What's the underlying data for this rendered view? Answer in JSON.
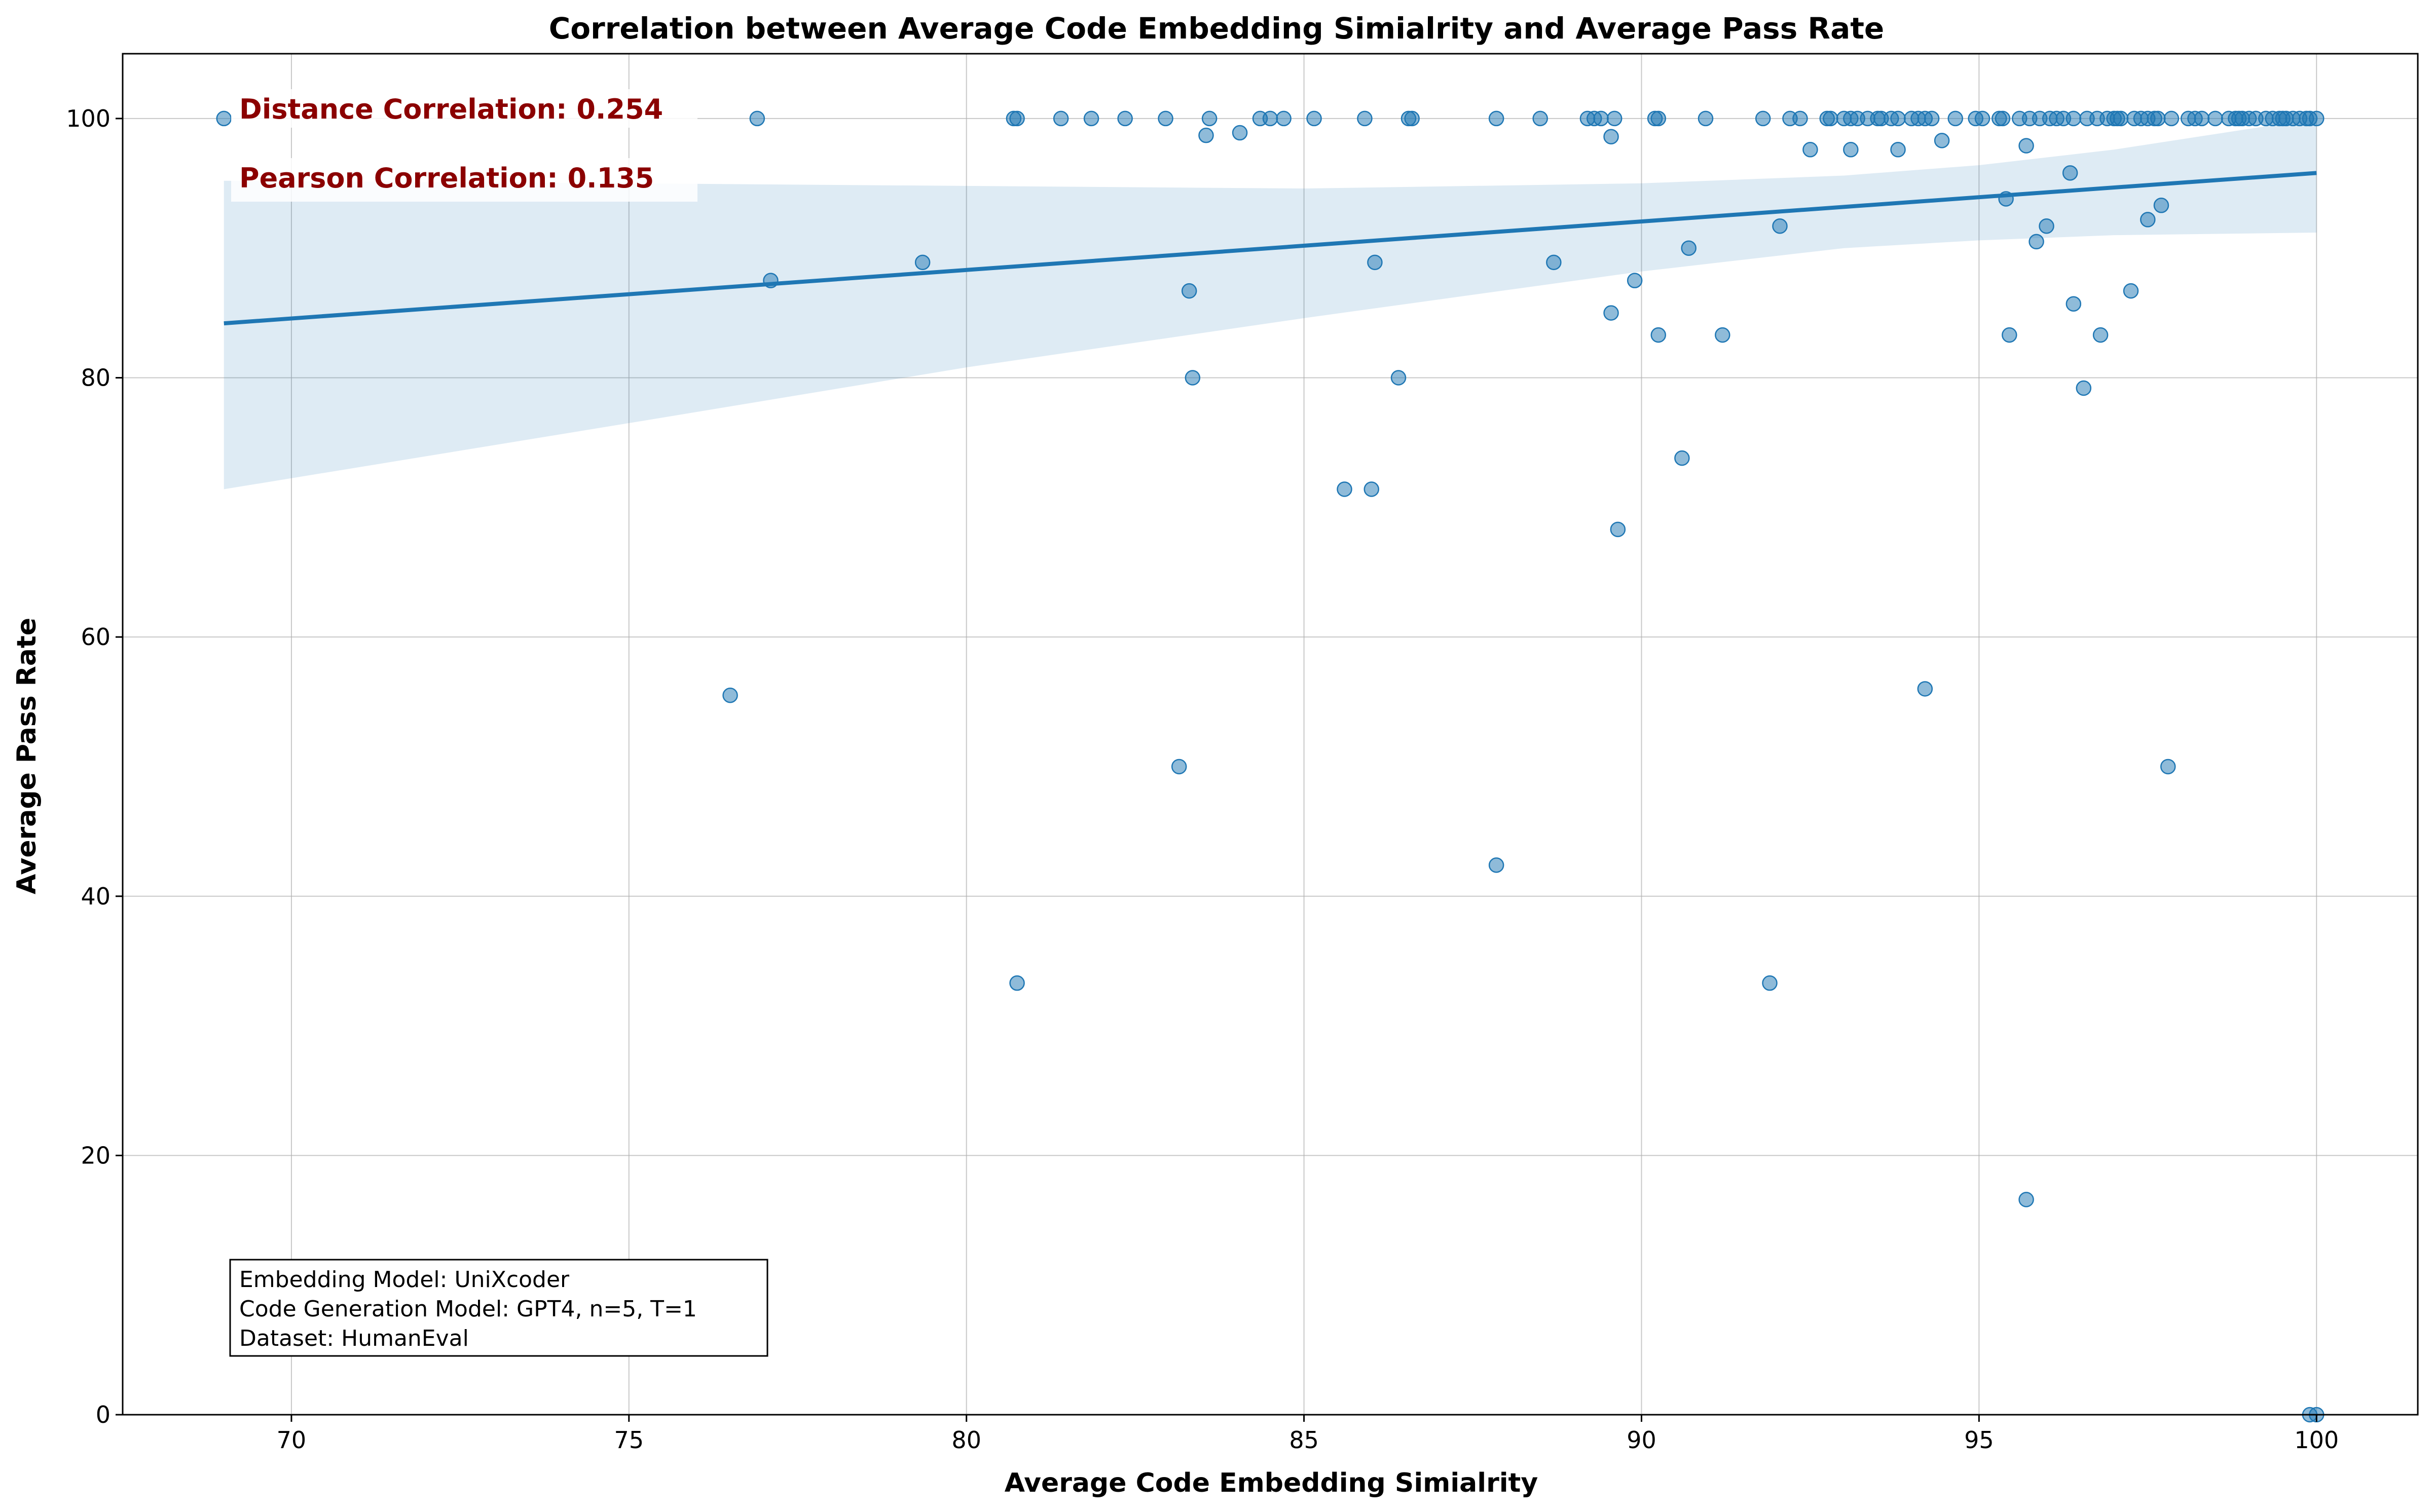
{
  "chart_data": {
    "type": "scatter",
    "title": "Correlation between Average Code Embedding Simialrity and Average Pass Rate",
    "xlabel": "Average Code Embedding Simialrity",
    "ylabel": "Average Pass Rate",
    "xlim": [
      67.5,
      101.5
    ],
    "ylim": [
      0,
      105
    ],
    "xticks": [
      70,
      75,
      80,
      85,
      90,
      95,
      100
    ],
    "yticks": [
      0,
      20,
      40,
      60,
      80,
      100
    ],
    "grid": true,
    "colors": {
      "points": "#1f77b4",
      "line": "#1f77b4",
      "band": "#1f77b4",
      "annotation": "#8b0000"
    },
    "annotations": {
      "distance": "Distance Correlation: 0.254",
      "pearson": "Pearson Correlation: 0.135",
      "info": [
        "Embedding Model: UniXcoder",
        "Code Generation Model: GPT4, n=5, T=1",
        "Dataset: HumanEval"
      ]
    },
    "regression": {
      "x": [
        69.0,
        100.0
      ],
      "y": [
        84.2,
        95.8
      ],
      "ci": [
        {
          "x": 69.0,
          "lo": 71.4,
          "hi": 95.2
        },
        {
          "x": 75.0,
          "lo": 76.5,
          "hi": 95.0
        },
        {
          "x": 80.0,
          "lo": 80.8,
          "hi": 94.8
        },
        {
          "x": 85.0,
          "lo": 84.6,
          "hi": 94.6
        },
        {
          "x": 90.0,
          "lo": 88.2,
          "hi": 95.0
        },
        {
          "x": 93.0,
          "lo": 90.0,
          "hi": 95.6
        },
        {
          "x": 95.0,
          "lo": 90.6,
          "hi": 96.4
        },
        {
          "x": 97.0,
          "lo": 91.0,
          "hi": 97.6
        },
        {
          "x": 100.0,
          "lo": 91.2,
          "hi": 100.0
        }
      ]
    },
    "points": [
      [
        69.0,
        100
      ],
      [
        76.9,
        100
      ],
      [
        80.7,
        100
      ],
      [
        80.75,
        100
      ],
      [
        81.4,
        100
      ],
      [
        81.85,
        100
      ],
      [
        82.35,
        100
      ],
      [
        82.95,
        100
      ],
      [
        83.6,
        100
      ],
      [
        84.35,
        100
      ],
      [
        84.5,
        100
      ],
      [
        84.7,
        100
      ],
      [
        85.15,
        100
      ],
      [
        85.9,
        100
      ],
      [
        86.55,
        100
      ],
      [
        86.6,
        100
      ],
      [
        87.85,
        100
      ],
      [
        88.5,
        100
      ],
      [
        89.2,
        100
      ],
      [
        89.3,
        100
      ],
      [
        89.4,
        100
      ],
      [
        89.6,
        100
      ],
      [
        90.2,
        100
      ],
      [
        90.25,
        100
      ],
      [
        90.95,
        100
      ],
      [
        91.8,
        100
      ],
      [
        92.2,
        100
      ],
      [
        92.35,
        100
      ],
      [
        92.75,
        100
      ],
      [
        92.8,
        100
      ],
      [
        93.0,
        100
      ],
      [
        93.1,
        100
      ],
      [
        93.2,
        100
      ],
      [
        93.35,
        100
      ],
      [
        93.5,
        100
      ],
      [
        93.55,
        100
      ],
      [
        93.7,
        100
      ],
      [
        93.8,
        100
      ],
      [
        94.0,
        100
      ],
      [
        94.1,
        100
      ],
      [
        94.2,
        100
      ],
      [
        94.3,
        100
      ],
      [
        94.65,
        100
      ],
      [
        94.95,
        100
      ],
      [
        95.05,
        100
      ],
      [
        95.3,
        100
      ],
      [
        95.35,
        100
      ],
      [
        95.6,
        100
      ],
      [
        95.75,
        100
      ],
      [
        95.9,
        100
      ],
      [
        96.05,
        100
      ],
      [
        96.15,
        100
      ],
      [
        96.25,
        100
      ],
      [
        96.4,
        100
      ],
      [
        96.6,
        100
      ],
      [
        96.75,
        100
      ],
      [
        96.9,
        100
      ],
      [
        97.0,
        100
      ],
      [
        97.05,
        100
      ],
      [
        97.1,
        100
      ],
      [
        97.3,
        100
      ],
      [
        97.4,
        100
      ],
      [
        97.5,
        100
      ],
      [
        97.6,
        100
      ],
      [
        97.65,
        100
      ],
      [
        97.85,
        100
      ],
      [
        98.1,
        100
      ],
      [
        98.2,
        100
      ],
      [
        98.3,
        100
      ],
      [
        98.5,
        100
      ],
      [
        98.7,
        100
      ],
      [
        98.8,
        100
      ],
      [
        98.85,
        100
      ],
      [
        98.9,
        100
      ],
      [
        99.0,
        100
      ],
      [
        99.1,
        100
      ],
      [
        99.25,
        100
      ],
      [
        99.35,
        100
      ],
      [
        99.45,
        100
      ],
      [
        99.5,
        100
      ],
      [
        99.55,
        100
      ],
      [
        99.65,
        100
      ],
      [
        99.75,
        100
      ],
      [
        99.85,
        100
      ],
      [
        99.9,
        100
      ],
      [
        100.0,
        100
      ],
      [
        83.55,
        98.7
      ],
      [
        84.05,
        98.9
      ],
      [
        89.55,
        98.6
      ],
      [
        92.5,
        97.6
      ],
      [
        93.1,
        97.6
      ],
      [
        93.8,
        97.6
      ],
      [
        94.45,
        98.3
      ],
      [
        95.7,
        97.9
      ],
      [
        96.35,
        95.8
      ],
      [
        95.4,
        93.8
      ],
      [
        97.7,
        93.3
      ],
      [
        97.5,
        92.2
      ],
      [
        92.05,
        91.7
      ],
      [
        96.0,
        91.7
      ],
      [
        95.85,
        90.5
      ],
      [
        90.7,
        90.0
      ],
      [
        79.35,
        88.9
      ],
      [
        77.1,
        87.5
      ],
      [
        86.05,
        88.9
      ],
      [
        88.7,
        88.9
      ],
      [
        89.9,
        87.5
      ],
      [
        83.3,
        86.7
      ],
      [
        96.4,
        85.7
      ],
      [
        97.25,
        86.7
      ],
      [
        89.55,
        85.0
      ],
      [
        90.25,
        83.3
      ],
      [
        91.2,
        83.3
      ],
      [
        95.45,
        83.3
      ],
      [
        96.8,
        83.3
      ],
      [
        83.35,
        80.0
      ],
      [
        86.4,
        80.0
      ],
      [
        96.55,
        79.2
      ],
      [
        90.6,
        73.8
      ],
      [
        85.6,
        71.4
      ],
      [
        86.0,
        71.4
      ],
      [
        89.65,
        68.3
      ],
      [
        76.5,
        55.5
      ],
      [
        94.2,
        56.0
      ],
      [
        83.15,
        50.0
      ],
      [
        97.8,
        50.0
      ],
      [
        87.85,
        42.4
      ],
      [
        80.75,
        33.3
      ],
      [
        91.9,
        33.3
      ],
      [
        95.7,
        16.6
      ],
      [
        99.9,
        0.0
      ],
      [
        100.0,
        0.0
      ]
    ]
  }
}
